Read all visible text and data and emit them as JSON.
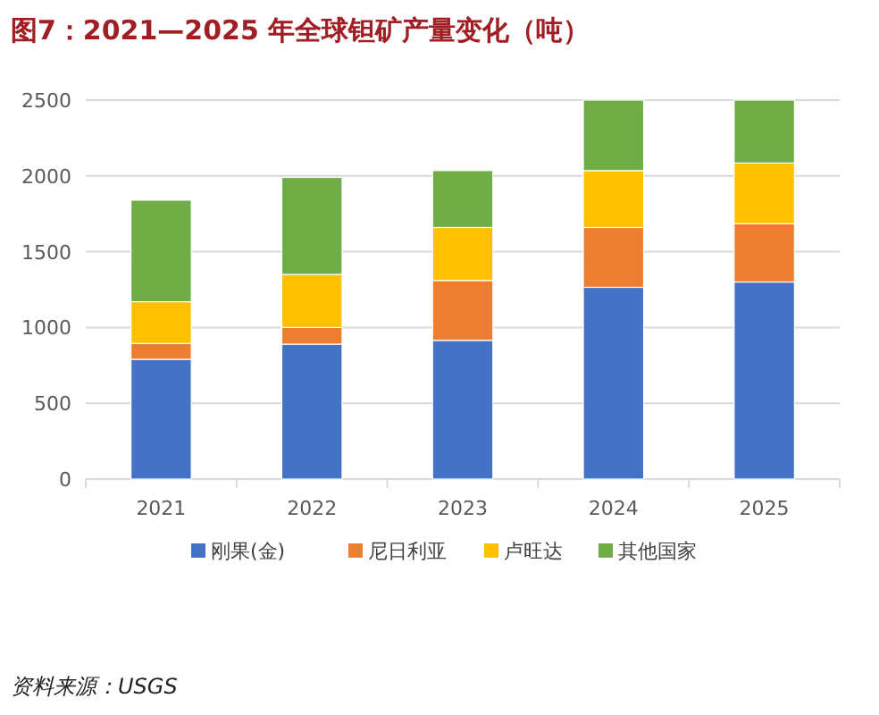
{
  "chart_data": {
    "type": "bar",
    "title": "图7：2021—2025 年全球钽矿产量变化（吨）",
    "categories": [
      "2021",
      "2022",
      "2023",
      "2024",
      "2025"
    ],
    "stacked": true,
    "series": [
      {
        "name": "刚果(金)",
        "color": "#4472c4",
        "values": [
          790,
          890,
          915,
          1265,
          1300
        ]
      },
      {
        "name": "尼日利亚",
        "color": "#ed7d31",
        "values": [
          105,
          110,
          395,
          395,
          385
        ]
      },
      {
        "name": "卢旺达",
        "color": "#ffc000",
        "values": [
          275,
          350,
          350,
          375,
          400
        ]
      },
      {
        "name": "其他国家",
        "color": "#70ad47",
        "values": [
          670,
          640,
          375,
          465,
          415
        ]
      }
    ],
    "ylim": [
      0,
      2500
    ],
    "yticks": [
      0,
      500,
      1000,
      1500,
      2000,
      2500
    ],
    "grid": "y",
    "legend": "bottom",
    "annotations": [
      "资料来源：USGS"
    ]
  }
}
